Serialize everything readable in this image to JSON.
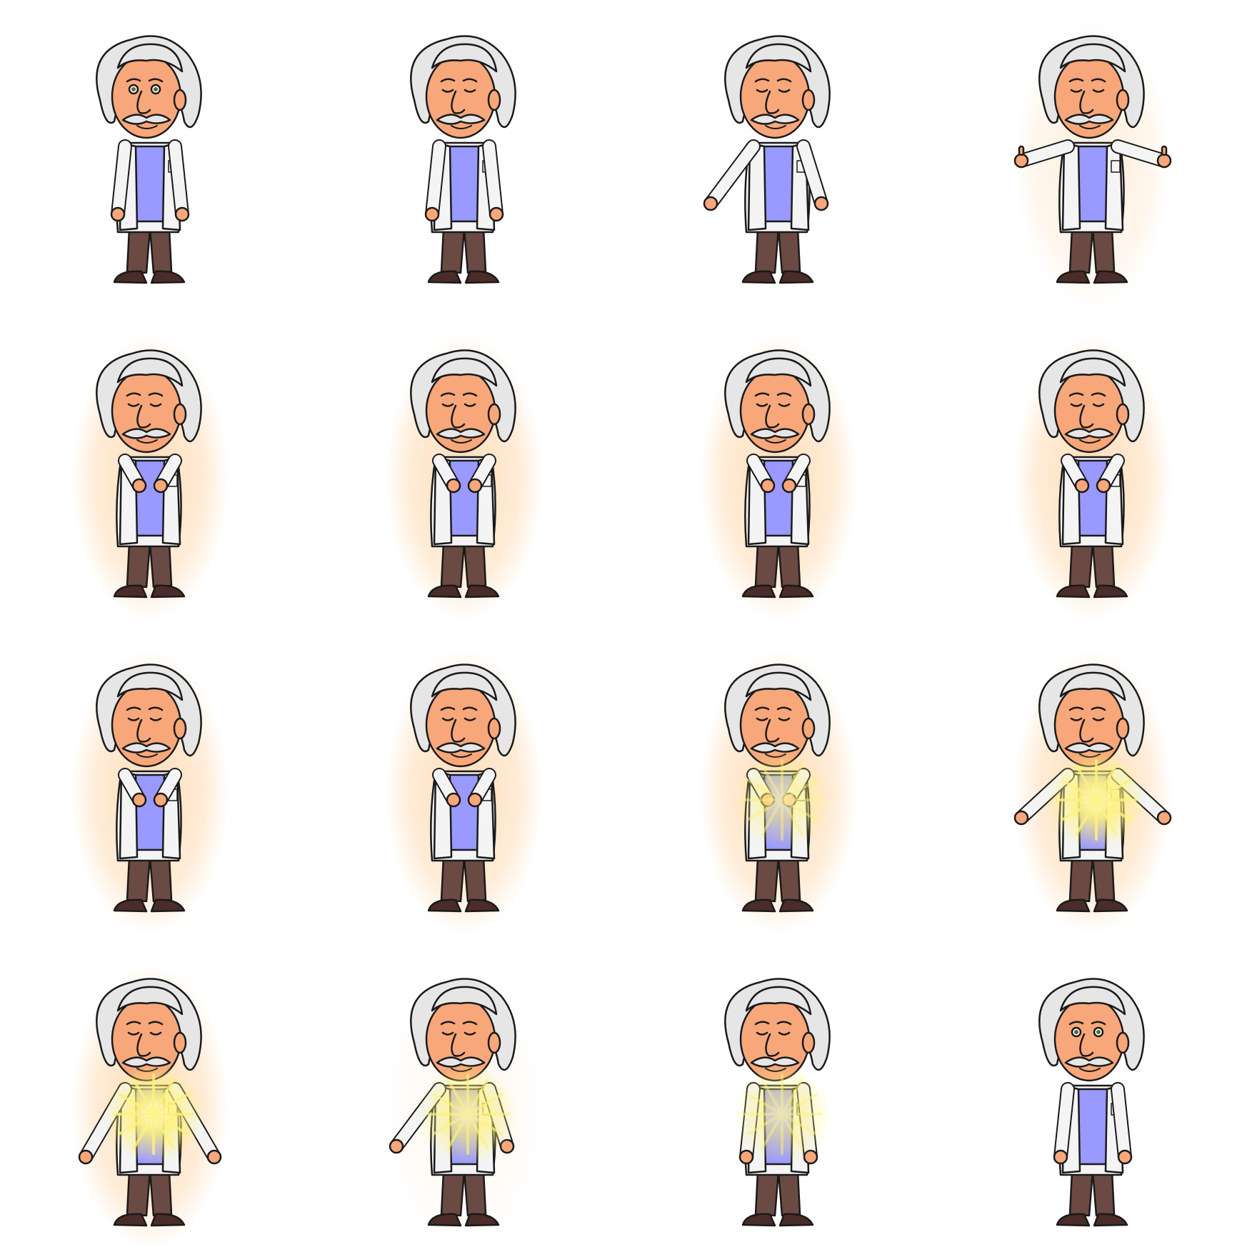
{
  "sheet": {
    "type": "sprite-sheet",
    "character": "scientist",
    "columns": 4,
    "rows": 4,
    "colors": {
      "background": "#ffffff",
      "hair": "#e6e6e6",
      "skin": "#f7a77a",
      "coat": "#f4f4f4",
      "shirt": "#9999ff",
      "pants": "#6b4a44",
      "shoes": "#4a2c28",
      "outline": "#1a1a1a",
      "aura": "#ffd9b0",
      "light_burst": "#fff27a"
    },
    "frames": [
      {
        "id": 1,
        "eyes": "open",
        "pose": "arms-down",
        "aura": 0,
        "burst": 0
      },
      {
        "id": 2,
        "eyes": "closed",
        "pose": "arms-down",
        "aura": 0,
        "burst": 0
      },
      {
        "id": 3,
        "eyes": "closed",
        "pose": "arms-spread",
        "aura": 0,
        "burst": 0
      },
      {
        "id": 4,
        "eyes": "closed",
        "pose": "thumbs-up",
        "aura": 0.5,
        "burst": 0
      },
      {
        "id": 5,
        "eyes": "closed",
        "pose": "hands-chest",
        "aura": 1,
        "burst": 0
      },
      {
        "id": 6,
        "eyes": "closed",
        "pose": "hands-chest",
        "aura": 1,
        "burst": 0
      },
      {
        "id": 7,
        "eyes": "closed",
        "pose": "hands-chest",
        "aura": 1,
        "burst": 0
      },
      {
        "id": 8,
        "eyes": "closed",
        "pose": "hands-chest",
        "aura": 1,
        "burst": 0
      },
      {
        "id": 9,
        "eyes": "closed",
        "pose": "hands-chest",
        "aura": 1,
        "burst": 0
      },
      {
        "id": 10,
        "eyes": "closed",
        "pose": "hands-chest",
        "aura": 1,
        "burst": 0
      },
      {
        "id": 11,
        "eyes": "closed",
        "pose": "hands-chest",
        "aura": 1,
        "burst": 0.6
      },
      {
        "id": 12,
        "eyes": "closed",
        "pose": "arms-out",
        "aura": 1,
        "burst": 1
      },
      {
        "id": 13,
        "eyes": "closed",
        "pose": "arms-out-low",
        "aura": 1,
        "burst": 1
      },
      {
        "id": 14,
        "eyes": "closed",
        "pose": "arms-spread",
        "aura": 0.2,
        "burst": 0.8
      },
      {
        "id": 15,
        "eyes": "closed",
        "pose": "arms-down",
        "aura": 0,
        "burst": 0.6
      },
      {
        "id": 16,
        "eyes": "open",
        "pose": "arms-down",
        "aura": 0,
        "burst": 0
      }
    ]
  }
}
